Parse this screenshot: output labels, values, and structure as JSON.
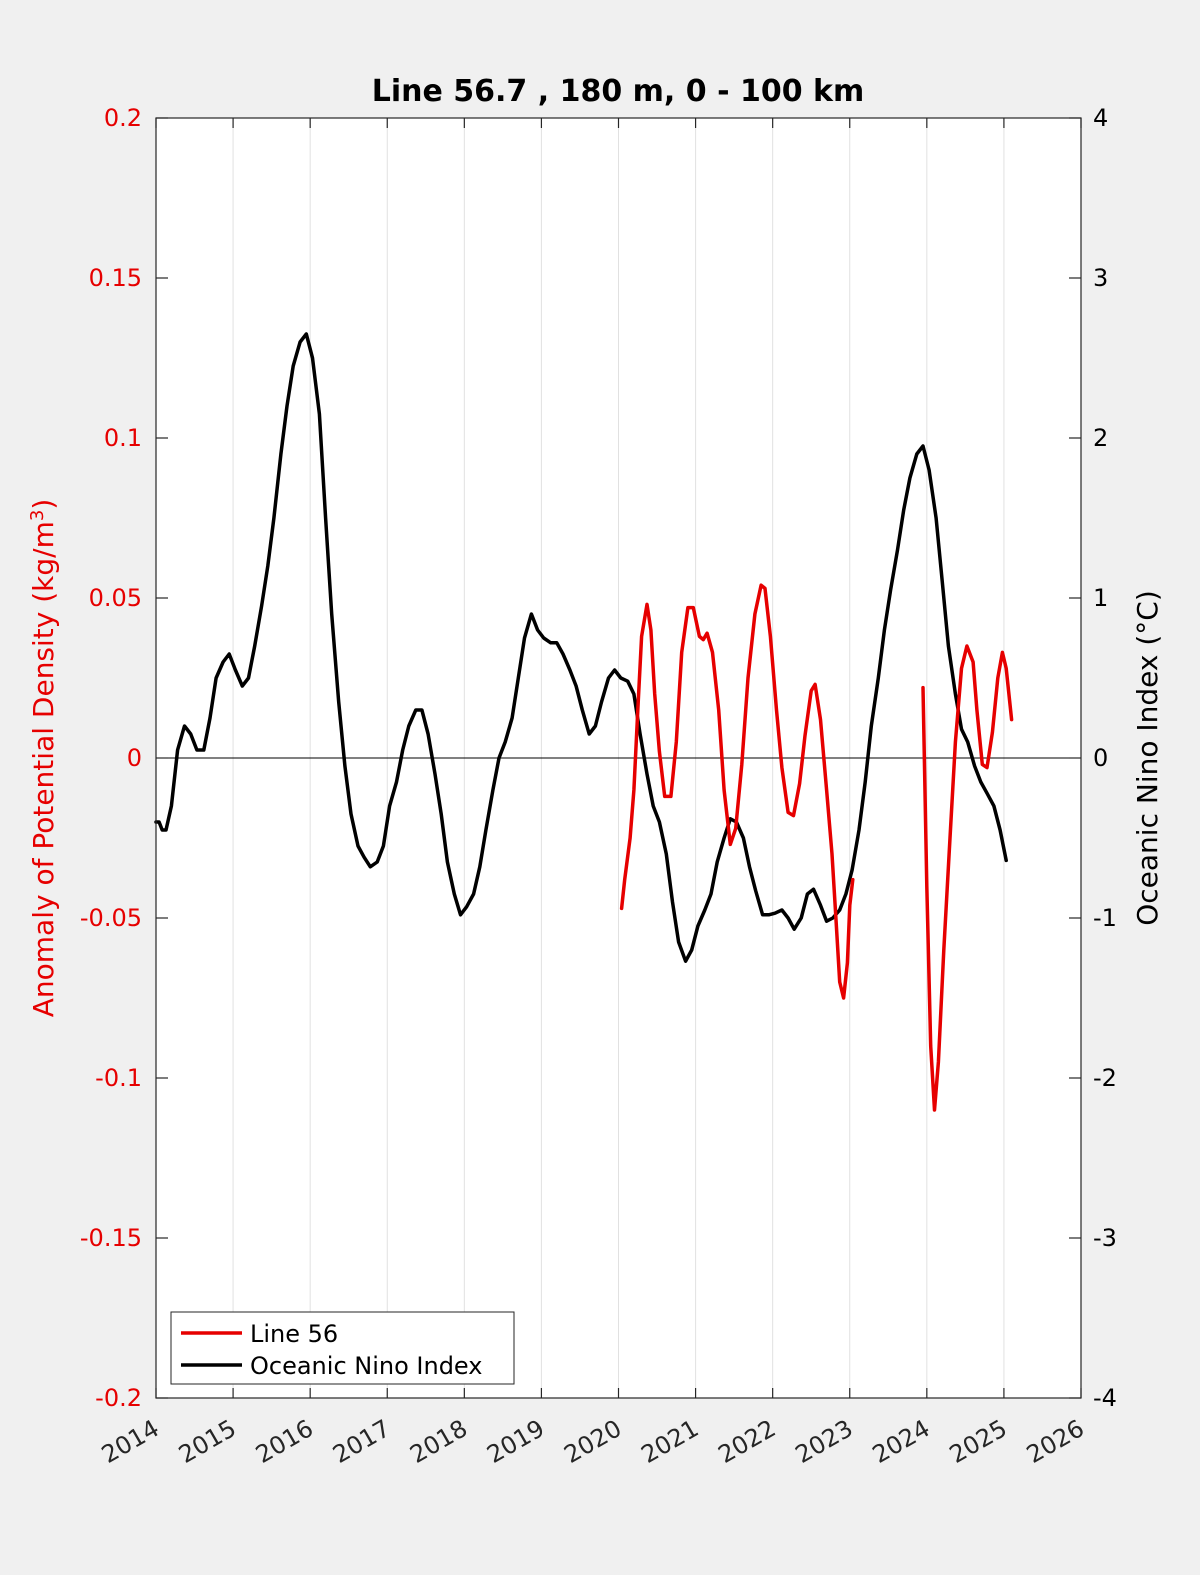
{
  "chart_data": {
    "type": "line",
    "title": "Line 56.7 , 180 m, 0 - 100 km",
    "xlabel": "",
    "ylabel_left": "Anomaly of Potential Density (kg/m",
    "ylabel_left_sup": "3",
    "ylabel_left_close": ")",
    "ylabel_right": "Oceanic Nino Index (°C)",
    "xlim": [
      2014,
      2026
    ],
    "ylim_left": [
      -0.2,
      0.2
    ],
    "ylim_right": [
      -4,
      4
    ],
    "x_ticks": [
      "2014",
      "2015",
      "2016",
      "2017",
      "2018",
      "2019",
      "2020",
      "2021",
      "2022",
      "2023",
      "2024",
      "2025",
      "2026"
    ],
    "y_left_ticks": [
      "-0.2",
      "-0.15",
      "-0.1",
      "-0.05",
      "0",
      "0.05",
      "0.1",
      "0.15",
      "0.2"
    ],
    "y_right_ticks": [
      "-4",
      "-3",
      "-2",
      "-1",
      "0",
      "1",
      "2",
      "3",
      "4"
    ],
    "grid": "vertical",
    "legend_position": "bottom-left",
    "colors": {
      "line56": "#e60000",
      "oni": "#000000",
      "left_axis": "#e60000",
      "right_axis": "#000000"
    },
    "series": [
      {
        "name": "Line 56",
        "axis": "left",
        "segments": [
          [
            [
              2020.04,
              -0.047
            ],
            [
              2020.08,
              -0.038
            ],
            [
              2020.15,
              -0.025
            ],
            [
              2020.2,
              -0.01
            ],
            [
              2020.25,
              0.015
            ],
            [
              2020.3,
              0.038
            ],
            [
              2020.37,
              0.048
            ],
            [
              2020.42,
              0.04
            ],
            [
              2020.47,
              0.02
            ],
            [
              2020.53,
              0.002
            ],
            [
              2020.6,
              -0.012
            ],
            [
              2020.68,
              -0.012
            ],
            [
              2020.75,
              0.005
            ],
            [
              2020.82,
              0.033
            ],
            [
              2020.9,
              0.047
            ],
            [
              2020.97,
              0.047
            ],
            [
              2021.05,
              0.038
            ],
            [
              2021.1,
              0.037
            ],
            [
              2021.15,
              0.039
            ],
            [
              2021.22,
              0.033
            ],
            [
              2021.3,
              0.015
            ],
            [
              2021.37,
              -0.01
            ],
            [
              2021.45,
              -0.027
            ],
            [
              2021.52,
              -0.022
            ],
            [
              2021.6,
              -0.002
            ],
            [
              2021.68,
              0.025
            ],
            [
              2021.77,
              0.045
            ],
            [
              2021.85,
              0.054
            ],
            [
              2021.9,
              0.053
            ],
            [
              2021.97,
              0.038
            ],
            [
              2022.05,
              0.015
            ],
            [
              2022.12,
              -0.003
            ],
            [
              2022.2,
              -0.017
            ],
            [
              2022.27,
              -0.018
            ],
            [
              2022.35,
              -0.008
            ],
            [
              2022.42,
              0.007
            ],
            [
              2022.5,
              0.021
            ],
            [
              2022.55,
              0.023
            ],
            [
              2022.62,
              0.012
            ],
            [
              2022.7,
              -0.01
            ],
            [
              2022.77,
              -0.03
            ],
            [
              2022.82,
              -0.05
            ],
            [
              2022.87,
              -0.07
            ],
            [
              2022.92,
              -0.075
            ],
            [
              2022.97,
              -0.064
            ],
            [
              2023.0,
              -0.046
            ],
            [
              2023.04,
              -0.038
            ]
          ],
          [
            [
              2023.95,
              0.022
            ],
            [
              2024.0,
              -0.04
            ],
            [
              2024.05,
              -0.09
            ],
            [
              2024.1,
              -0.11
            ],
            [
              2024.15,
              -0.095
            ],
            [
              2024.22,
              -0.06
            ],
            [
              2024.3,
              -0.025
            ],
            [
              2024.37,
              0.005
            ],
            [
              2024.45,
              0.028
            ],
            [
              2024.52,
              0.035
            ],
            [
              2024.6,
              0.03
            ],
            [
              2024.65,
              0.015
            ],
            [
              2024.72,
              -0.002
            ],
            [
              2024.78,
              -0.003
            ],
            [
              2024.85,
              0.008
            ],
            [
              2024.92,
              0.025
            ],
            [
              2024.98,
              0.033
            ],
            [
              2025.03,
              0.028
            ],
            [
              2025.1,
              0.012
            ]
          ]
        ]
      },
      {
        "name": "Oceanic Nino Index",
        "axis": "right",
        "segments": [
          [
            [
              2014.0,
              -0.4
            ],
            [
              2014.04,
              -0.4
            ],
            [
              2014.08,
              -0.45
            ],
            [
              2014.13,
              -0.45
            ],
            [
              2014.2,
              -0.3
            ],
            [
              2014.28,
              0.05
            ],
            [
              2014.37,
              0.2
            ],
            [
              2014.45,
              0.15
            ],
            [
              2014.53,
              0.05
            ],
            [
              2014.62,
              0.05
            ],
            [
              2014.7,
              0.25
            ],
            [
              2014.78,
              0.5
            ],
            [
              2014.87,
              0.6
            ],
            [
              2014.95,
              0.65
            ],
            [
              2015.03,
              0.55
            ],
            [
              2015.12,
              0.45
            ],
            [
              2015.2,
              0.5
            ],
            [
              2015.28,
              0.7
            ],
            [
              2015.37,
              0.95
            ],
            [
              2015.45,
              1.2
            ],
            [
              2015.53,
              1.5
            ],
            [
              2015.62,
              1.9
            ],
            [
              2015.7,
              2.2
            ],
            [
              2015.78,
              2.45
            ],
            [
              2015.87,
              2.6
            ],
            [
              2015.95,
              2.65
            ],
            [
              2016.03,
              2.5
            ],
            [
              2016.12,
              2.15
            ],
            [
              2016.2,
              1.5
            ],
            [
              2016.28,
              0.9
            ],
            [
              2016.37,
              0.35
            ],
            [
              2016.45,
              -0.05
            ],
            [
              2016.53,
              -0.35
            ],
            [
              2016.62,
              -0.55
            ],
            [
              2016.7,
              -0.62
            ],
            [
              2016.78,
              -0.68
            ],
            [
              2016.87,
              -0.65
            ],
            [
              2016.95,
              -0.55
            ],
            [
              2017.03,
              -0.3
            ],
            [
              2017.12,
              -0.15
            ],
            [
              2017.2,
              0.05
            ],
            [
              2017.28,
              0.2
            ],
            [
              2017.37,
              0.3
            ],
            [
              2017.45,
              0.3
            ],
            [
              2017.53,
              0.15
            ],
            [
              2017.62,
              -0.1
            ],
            [
              2017.7,
              -0.35
            ],
            [
              2017.78,
              -0.65
            ],
            [
              2017.87,
              -0.85
            ],
            [
              2017.95,
              -0.98
            ],
            [
              2018.03,
              -0.93
            ],
            [
              2018.12,
              -0.85
            ],
            [
              2018.2,
              -0.68
            ],
            [
              2018.28,
              -0.45
            ],
            [
              2018.37,
              -0.2
            ],
            [
              2018.45,
              0.0
            ],
            [
              2018.53,
              0.1
            ],
            [
              2018.62,
              0.25
            ],
            [
              2018.7,
              0.5
            ],
            [
              2018.78,
              0.75
            ],
            [
              2018.87,
              0.9
            ],
            [
              2018.95,
              0.8
            ],
            [
              2019.03,
              0.75
            ],
            [
              2019.12,
              0.72
            ],
            [
              2019.2,
              0.72
            ],
            [
              2019.28,
              0.65
            ],
            [
              2019.37,
              0.55
            ],
            [
              2019.45,
              0.45
            ],
            [
              2019.53,
              0.3
            ],
            [
              2019.62,
              0.15
            ],
            [
              2019.7,
              0.2
            ],
            [
              2019.78,
              0.35
            ],
            [
              2019.87,
              0.5
            ],
            [
              2019.95,
              0.55
            ],
            [
              2020.03,
              0.5
            ],
            [
              2020.12,
              0.48
            ],
            [
              2020.2,
              0.4
            ],
            [
              2020.28,
              0.15
            ],
            [
              2020.37,
              -0.1
            ],
            [
              2020.45,
              -0.3
            ],
            [
              2020.53,
              -0.4
            ],
            [
              2020.62,
              -0.6
            ],
            [
              2020.7,
              -0.9
            ],
            [
              2020.78,
              -1.15
            ],
            [
              2020.87,
              -1.27
            ],
            [
              2020.95,
              -1.2
            ],
            [
              2021.03,
              -1.05
            ],
            [
              2021.12,
              -0.95
            ],
            [
              2021.2,
              -0.85
            ],
            [
              2021.28,
              -0.65
            ],
            [
              2021.37,
              -0.5
            ],
            [
              2021.45,
              -0.38
            ],
            [
              2021.53,
              -0.4
            ],
            [
              2021.62,
              -0.5
            ],
            [
              2021.7,
              -0.68
            ],
            [
              2021.78,
              -0.83
            ],
            [
              2021.87,
              -0.98
            ],
            [
              2021.95,
              -0.98
            ],
            [
              2022.03,
              -0.97
            ],
            [
              2022.12,
              -0.95
            ],
            [
              2022.2,
              -1.0
            ],
            [
              2022.28,
              -1.07
            ],
            [
              2022.37,
              -1.0
            ],
            [
              2022.45,
              -0.85
            ],
            [
              2022.53,
              -0.82
            ],
            [
              2022.62,
              -0.92
            ],
            [
              2022.7,
              -1.02
            ],
            [
              2022.78,
              -1.0
            ],
            [
              2022.87,
              -0.95
            ],
            [
              2022.95,
              -0.85
            ],
            [
              2023.03,
              -0.7
            ],
            [
              2023.12,
              -0.45
            ],
            [
              2023.2,
              -0.15
            ],
            [
              2023.28,
              0.2
            ],
            [
              2023.37,
              0.5
            ],
            [
              2023.45,
              0.8
            ],
            [
              2023.53,
              1.05
            ],
            [
              2023.62,
              1.3
            ],
            [
              2023.7,
              1.55
            ],
            [
              2023.78,
              1.75
            ],
            [
              2023.87,
              1.9
            ],
            [
              2023.95,
              1.95
            ],
            [
              2024.03,
              1.8
            ],
            [
              2024.12,
              1.5
            ],
            [
              2024.2,
              1.1
            ],
            [
              2024.28,
              0.7
            ],
            [
              2024.37,
              0.4
            ],
            [
              2024.45,
              0.18
            ],
            [
              2024.53,
              0.1
            ],
            [
              2024.62,
              -0.05
            ],
            [
              2024.7,
              -0.15
            ],
            [
              2024.78,
              -0.22
            ],
            [
              2024.87,
              -0.3
            ],
            [
              2024.95,
              -0.45
            ],
            [
              2025.03,
              -0.64
            ]
          ]
        ]
      }
    ]
  }
}
